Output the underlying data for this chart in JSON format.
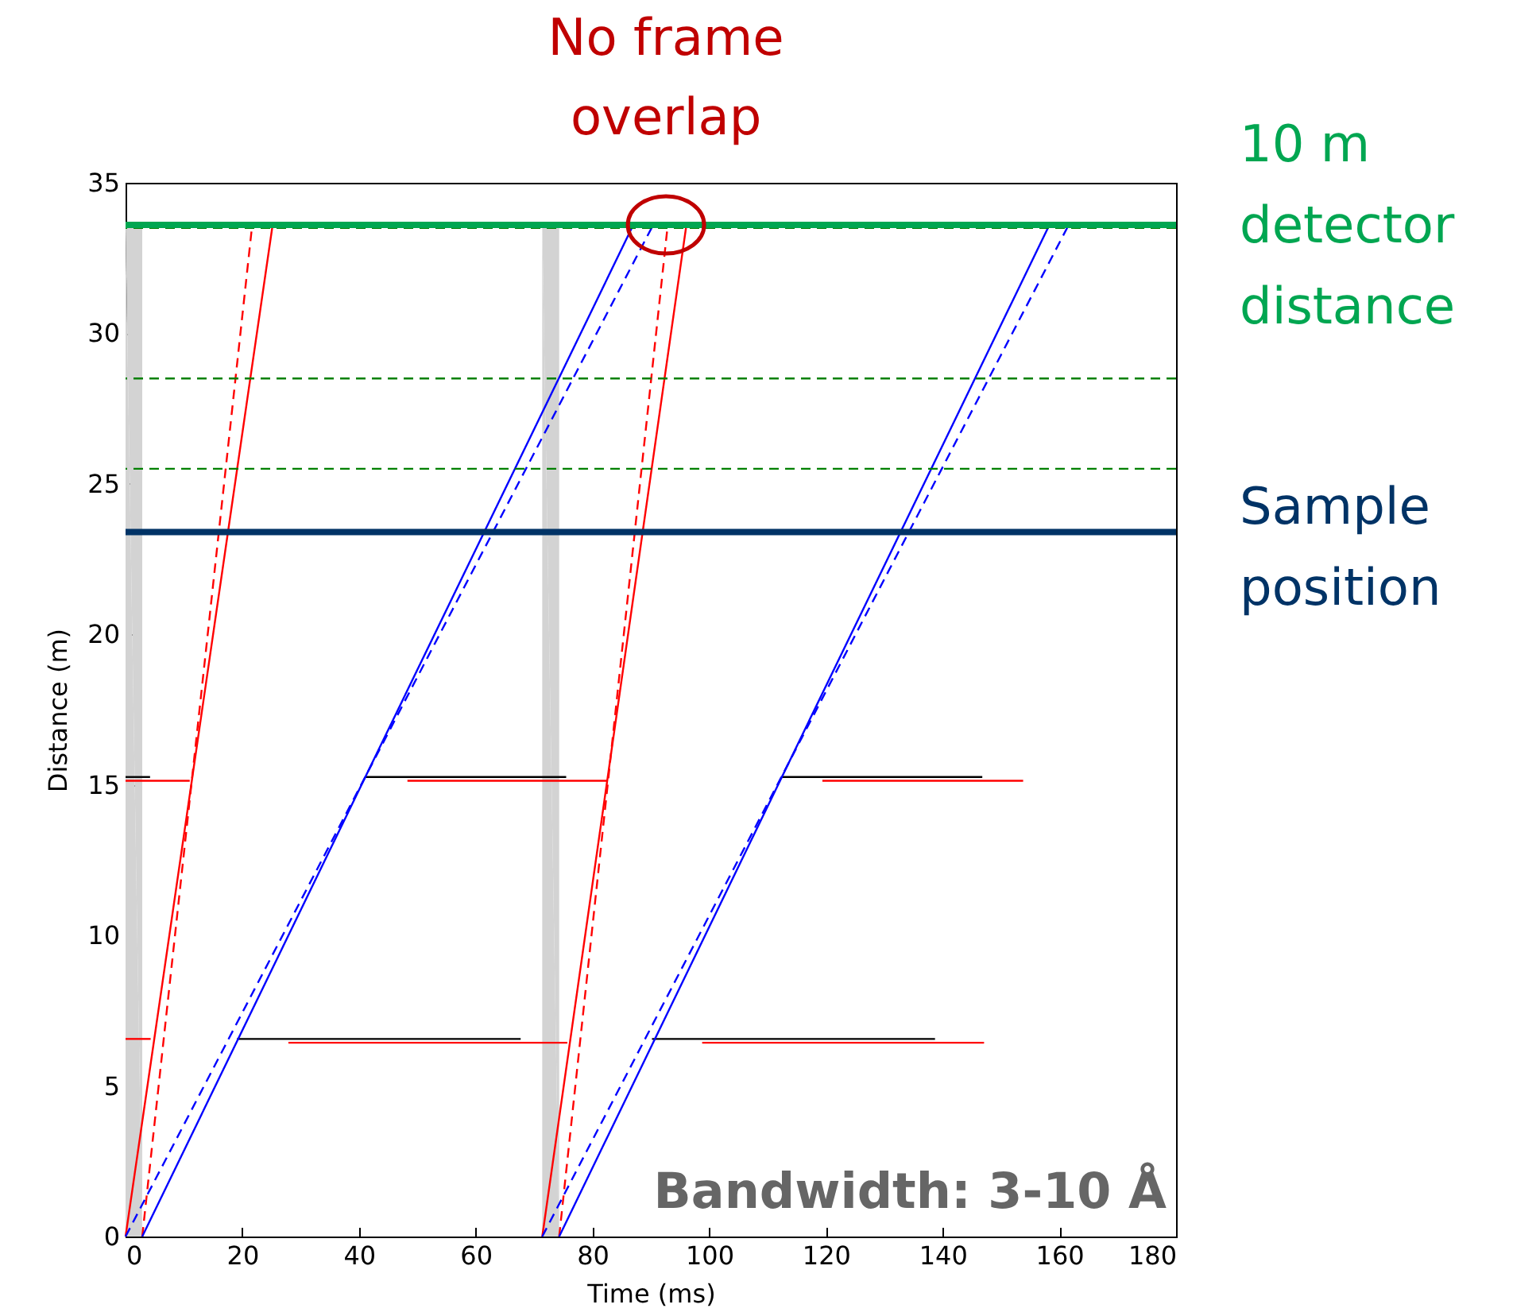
{
  "chart_data": {
    "type": "line",
    "xlabel": "Time (ms)",
    "ylabel": "Distance (m)",
    "xlim": [
      0,
      180
    ],
    "xticks": [
      0,
      20,
      40,
      60,
      80,
      100,
      120,
      140,
      160,
      180
    ],
    "ylim": [
      0,
      35
    ],
    "yticks": [
      0,
      5,
      10,
      15,
      20,
      25,
      30,
      35
    ],
    "grid": false,
    "marker": "none",
    "series": [
      {
        "type": "area",
        "color": "#d3d3d3",
        "x": [
          0,
          2.86
        ],
        "values": [
          33.5,
          33.5
        ]
      },
      {
        "type": "area",
        "color": "#d3d3d3",
        "x": [
          71.4,
          74.3
        ],
        "values": [
          33.5,
          33.5
        ]
      },
      {
        "color": "#000000",
        "x": [
          0,
          4.2
        ],
        "values": [
          15.2,
          15.2
        ]
      },
      {
        "color": "#000000",
        "x": [
          41.1,
          75.5
        ],
        "values": [
          15.2,
          15.2
        ]
      },
      {
        "color": "#000000",
        "x": [
          112.4,
          146.8
        ],
        "values": [
          15.2,
          15.2
        ]
      },
      {
        "color": "#000000",
        "x": [
          19.1,
          67.7
        ],
        "values": [
          6.5,
          6.5
        ]
      },
      {
        "color": "#000000",
        "x": [
          90.2,
          138.7
        ],
        "values": [
          6.5,
          6.5
        ]
      },
      {
        "color": "#ff0000",
        "x": [
          0,
          11.0
        ],
        "values": [
          15.2,
          15.2
        ]
      },
      {
        "color": "#ff0000",
        "x": [
          48.3,
          82.5
        ],
        "values": [
          15.2,
          15.2
        ]
      },
      {
        "color": "#ff0000",
        "x": [
          119.4,
          153.8
        ],
        "values": [
          15.2,
          15.2
        ]
      },
      {
        "color": "#ff0000",
        "x": [
          0,
          4.3
        ],
        "values": [
          6.5,
          6.5
        ]
      },
      {
        "color": "#ff0000",
        "x": [
          27.9,
          75.7
        ],
        "values": [
          6.5,
          6.5
        ]
      },
      {
        "color": "#ff0000",
        "x": [
          98.8,
          147.1
        ],
        "values": [
          6.5,
          6.5
        ]
      },
      {
        "color": "#ff0000",
        "line_style": "solid",
        "x": [
          0,
          25.2
        ],
        "values": [
          0,
          33.6
        ]
      },
      {
        "color": "#ff0000",
        "line_style": "dashed",
        "x": [
          2.86,
          21.7
        ],
        "values": [
          0,
          33.6
        ]
      },
      {
        "color": "#0000ff",
        "line_style": "solid",
        "x": [
          2.86,
          87.0
        ],
        "values": [
          0,
          33.6
        ]
      },
      {
        "color": "#0000ff",
        "line_style": "dashed",
        "x": [
          0,
          90.4
        ],
        "values": [
          0,
          33.6
        ]
      },
      {
        "color": "#ff0000",
        "line_style": "solid",
        "x": [
          71.4,
          96.1
        ],
        "values": [
          0,
          33.6
        ]
      },
      {
        "color": "#ff0000",
        "line_style": "dashed",
        "x": [
          74.3,
          92.9
        ],
        "values": [
          0,
          33.6
        ]
      },
      {
        "color": "#0000ff",
        "line_style": "solid",
        "x": [
          74.3,
          158.3
        ],
        "values": [
          0,
          33.6
        ]
      },
      {
        "color": "#0000ff",
        "line_style": "dashed",
        "x": [
          71.4,
          161.6
        ],
        "values": [
          0,
          33.6
        ]
      }
    ],
    "ref_lines": [
      {
        "axis": "y",
        "value": 33.5,
        "color": "#008000",
        "line_style": "dashed"
      },
      {
        "axis": "y",
        "value": 28.5,
        "color": "#008000",
        "line_style": "dashed"
      },
      {
        "axis": "y",
        "value": 25.5,
        "color": "#008000",
        "line_style": "dashed"
      },
      {
        "axis": "y",
        "value": 33.6,
        "color": "#00a651",
        "line_style": "solid",
        "label": "10 m detector distance"
      },
      {
        "axis": "y",
        "value": 23.4,
        "color": "#003366",
        "line_style": "solid",
        "label": "Sample position"
      }
    ],
    "annotations": [
      {
        "text": "No frame overlap",
        "x": 92.6,
        "y": 33.6
      },
      "Bandwidth: 3-10 Å"
    ]
  }
}
